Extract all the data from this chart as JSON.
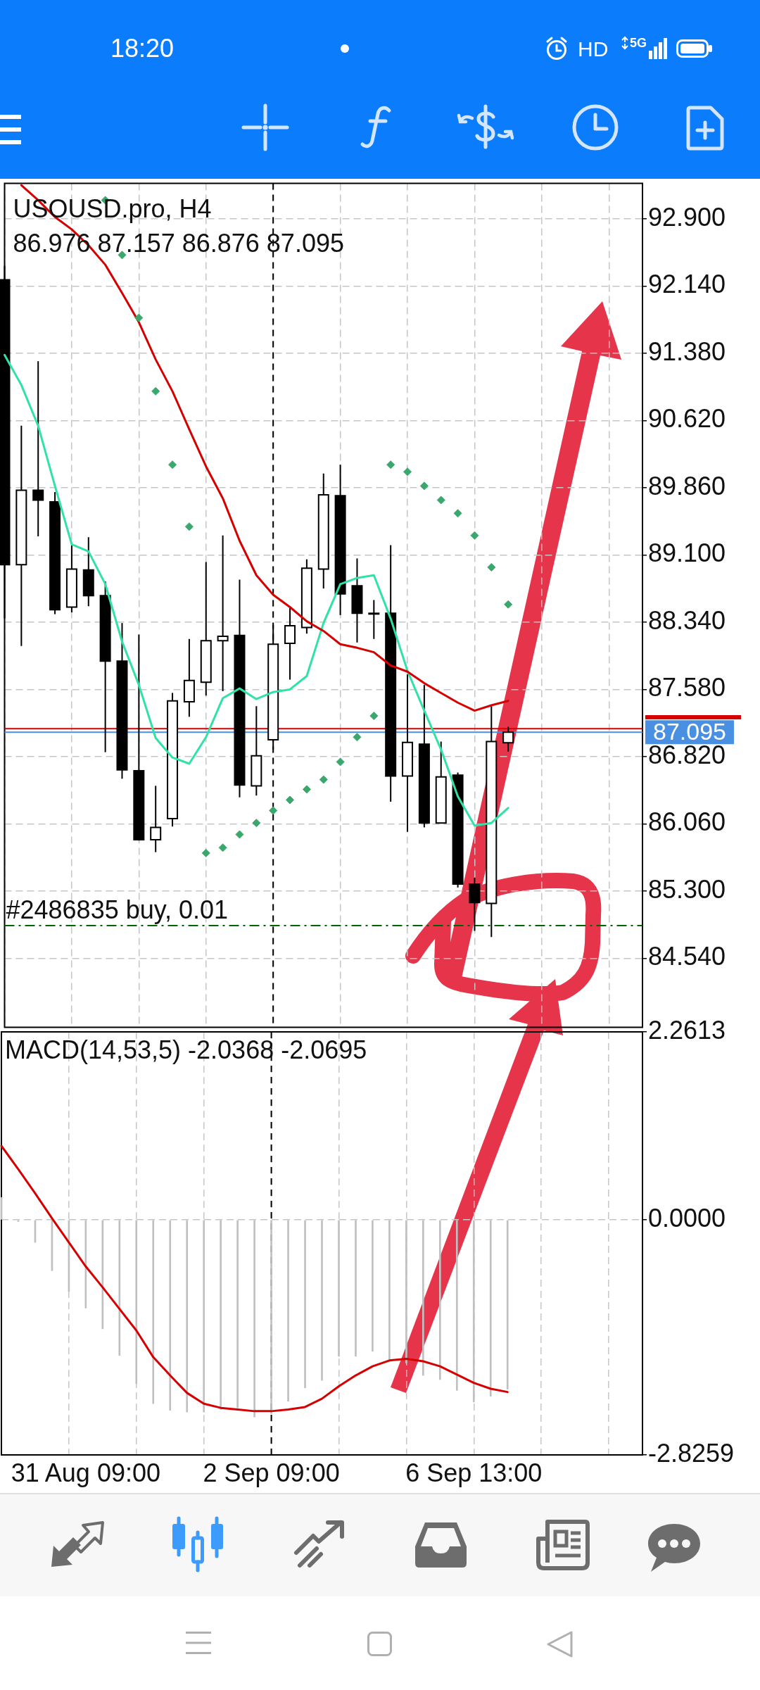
{
  "chart_data": [
    {
      "type": "candlestick",
      "title": "USOUSD.pro, H4",
      "subtitle": "86.976 87.157 86.876 87.095",
      "categories": [
        null,
        null,
        null,
        null,
        null,
        null,
        null,
        null,
        null,
        null,
        null,
        null,
        null,
        null,
        null,
        null,
        null,
        null,
        null,
        null,
        null,
        null,
        null,
        null,
        null,
        null,
        null,
        null,
        null,
        null,
        null,
        null,
        null,
        null,
        null,
        null,
        null,
        null,
        null
      ],
      "ohlc": [
        [
          92.21,
          92.37,
          88.38,
          88.99
        ],
        [
          88.99,
          90.56,
          88.07,
          89.83
        ],
        [
          89.83,
          91.29,
          89.31,
          89.72
        ],
        [
          89.7,
          89.81,
          88.43,
          88.48
        ],
        [
          88.51,
          89.21,
          88.45,
          88.94
        ],
        [
          88.93,
          89.3,
          88.52,
          88.64
        ],
        [
          88.64,
          88.8,
          86.87,
          87.9
        ],
        [
          87.9,
          88.33,
          86.57,
          86.67
        ],
        [
          86.66,
          88.2,
          85.87,
          85.88
        ],
        [
          85.88,
          86.49,
          85.74,
          86.02
        ],
        [
          86.12,
          87.54,
          86.03,
          87.45
        ],
        [
          87.44,
          88.15,
          87.27,
          87.68
        ],
        [
          87.66,
          89.02,
          87.51,
          88.13
        ],
        [
          88.13,
          89.32,
          87.56,
          88.18
        ],
        [
          88.19,
          88.82,
          86.36,
          86.5
        ],
        [
          86.49,
          87.39,
          86.38,
          86.83
        ],
        [
          87.01,
          88.31,
          86.9,
          88.09
        ],
        [
          88.1,
          88.52,
          87.69,
          88.3
        ],
        [
          88.28,
          89.05,
          88.21,
          88.95
        ],
        [
          88.94,
          90.02,
          88.72,
          89.78
        ],
        [
          89.77,
          90.12,
          88.42,
          88.66
        ],
        [
          88.75,
          89.06,
          88.11,
          88.44
        ],
        [
          88.44,
          88.59,
          88.15,
          88.44
        ],
        [
          88.44,
          89.21,
          86.31,
          86.6
        ],
        [
          86.6,
          87.75,
          85.97,
          86.98
        ],
        [
          86.96,
          87.63,
          86.02,
          86.07
        ],
        [
          86.07,
          86.99,
          86.07,
          86.59
        ],
        [
          86.61,
          86.64,
          85.34,
          85.38
        ],
        [
          85.38,
          85.45,
          84.85,
          85.17
        ],
        [
          85.16,
          87.39,
          84.78,
          86.99
        ],
        [
          86.976,
          87.157,
          86.876,
          87.095
        ],
        null,
        null,
        null,
        null,
        null,
        null,
        null,
        null
      ],
      "series": [
        {
          "type": "line",
          "color": "#d60000",
          "values": [
            null,
            93.28,
            93.11,
            92.92,
            92.78,
            92.6,
            92.38,
            92.06,
            91.73,
            91.31,
            90.95,
            90.52,
            90.1,
            89.74,
            89.26,
            88.87,
            88.65,
            88.51,
            88.35,
            88.24,
            88.09,
            88.05,
            88.0,
            87.85,
            87.78,
            87.65,
            87.54,
            87.43,
            87.34,
            87.4,
            87.45,
            null,
            null,
            null,
            null,
            null,
            null,
            null,
            null
          ]
        },
        {
          "type": "line",
          "color": "#30e3a4",
          "values": [
            91.36,
            91.02,
            90.56,
            89.88,
            89.22,
            89.14,
            88.77,
            88.12,
            87.63,
            87.03,
            86.81,
            86.74,
            87.04,
            87.48,
            87.59,
            87.47,
            87.55,
            87.58,
            87.73,
            88.33,
            88.77,
            88.84,
            88.87,
            88.38,
            87.79,
            87.34,
            86.9,
            86.37,
            86.04,
            86.07,
            86.24,
            null,
            null,
            null,
            null,
            null,
            null,
            null,
            null
          ]
        },
        {
          "type": "scatter",
          "marker": "diamond",
          "color": "#3aa86d",
          "values": [
            null,
            null,
            null,
            null,
            null,
            null,
            93.11,
            92.49,
            91.78,
            90.95,
            90.12,
            89.42,
            85.73,
            85.79,
            85.94,
            86.07,
            86.21,
            86.33,
            86.45,
            86.56,
            86.76,
            87.04,
            87.28,
            90.12,
            90.04,
            89.88,
            89.72,
            89.57,
            89.32,
            88.96,
            88.54,
            null,
            null,
            null,
            null,
            null,
            null,
            null,
            null
          ]
        }
      ],
      "ylim": [
        83.76,
        93.3
      ],
      "yticks": [
        {
          "value": 84.54,
          "label": "84.540"
        },
        {
          "value": 85.3,
          "label": "85.300"
        },
        {
          "value": 86.06,
          "label": "86.060"
        },
        {
          "value": 86.82,
          "label": "86.820"
        },
        {
          "value": 87.58,
          "label": "87.580"
        },
        {
          "value": 88.34,
          "label": "88.340"
        },
        {
          "value": 89.1,
          "label": "89.100"
        },
        {
          "value": 89.86,
          "label": "89.860"
        },
        {
          "value": 90.62,
          "label": "90.620"
        },
        {
          "value": 91.38,
          "label": "91.380"
        },
        {
          "value": 92.14,
          "label": "92.140"
        },
        {
          "value": 92.9,
          "label": "92.900"
        }
      ],
      "ref_lines": [
        {
          "axis": "y",
          "value": 87.135,
          "color": "#d60000",
          "line_style": "solid"
        },
        {
          "axis": "y",
          "value": 87.095,
          "label": "87.095",
          "color": "#4a90e2",
          "line_style": "solid"
        },
        {
          "axis": "y",
          "value": 84.91,
          "label": "#2486835 buy, 0.01",
          "color": "#006400",
          "line_style": "dashed"
        }
      ],
      "grid": true,
      "tick_labels": "y",
      "annotations": [
        "18:20",
        "HD",
        "5G"
      ]
    },
    {
      "type": "bar",
      "title": "MACD(14,53,5) -2.0368 -2.0695",
      "categories": [
        null,
        null,
        null,
        null,
        null,
        "31 Aug 09:00",
        null,
        null,
        null,
        null,
        null,
        null,
        null,
        null,
        null,
        null,
        "2 Sep 09:00",
        null,
        null,
        null,
        null,
        null,
        null,
        null,
        null,
        null,
        null,
        null,
        "6 Sep 13:00",
        null,
        null,
        null,
        null,
        null,
        null,
        null,
        null,
        null,
        null
      ],
      "series": [
        {
          "type": "bar",
          "color": "#c0c0c0",
          "values": [
            0.27,
            -0.02,
            -0.27,
            -0.61,
            -0.86,
            -1.06,
            -1.31,
            -1.63,
            -1.97,
            -2.21,
            -2.29,
            -2.31,
            -2.31,
            -2.28,
            -2.26,
            -2.37,
            -2.33,
            -2.18,
            -2.02,
            -1.93,
            -1.64,
            -1.64,
            -1.58,
            -1.7,
            -1.72,
            -1.87,
            -1.92,
            -2.05,
            -2.19,
            -2.12,
            -2.0368,
            null,
            null,
            null,
            null,
            null,
            null,
            null,
            null
          ]
        },
        {
          "type": "line",
          "color": "#d60000",
          "values": [
            0.89,
            0.61,
            0.32,
            0.02,
            -0.27,
            -0.56,
            -0.81,
            -1.07,
            -1.33,
            -1.65,
            -1.87,
            -2.08,
            -2.21,
            -2.26,
            -2.28,
            -2.3,
            -2.3,
            -2.28,
            -2.25,
            -2.15,
            -2.0,
            -1.87,
            -1.76,
            -1.69,
            -1.67,
            -1.7,
            -1.76,
            -1.86,
            -1.96,
            -2.03,
            -2.0695,
            null,
            null,
            null,
            null,
            null,
            null,
            null,
            null
          ]
        }
      ],
      "ylim": [
        -2.8259,
        2.2613
      ],
      "yticks": [
        -2.8259,
        {
          "value": 0,
          "label": "0.0000"
        },
        2.2613
      ],
      "ref_lines": [
        {
          "axis": "x",
          "value": "2 Sep 09:00",
          "color": "#000000",
          "line_style": "dashed"
        }
      ],
      "grid": true
    }
  ]
}
